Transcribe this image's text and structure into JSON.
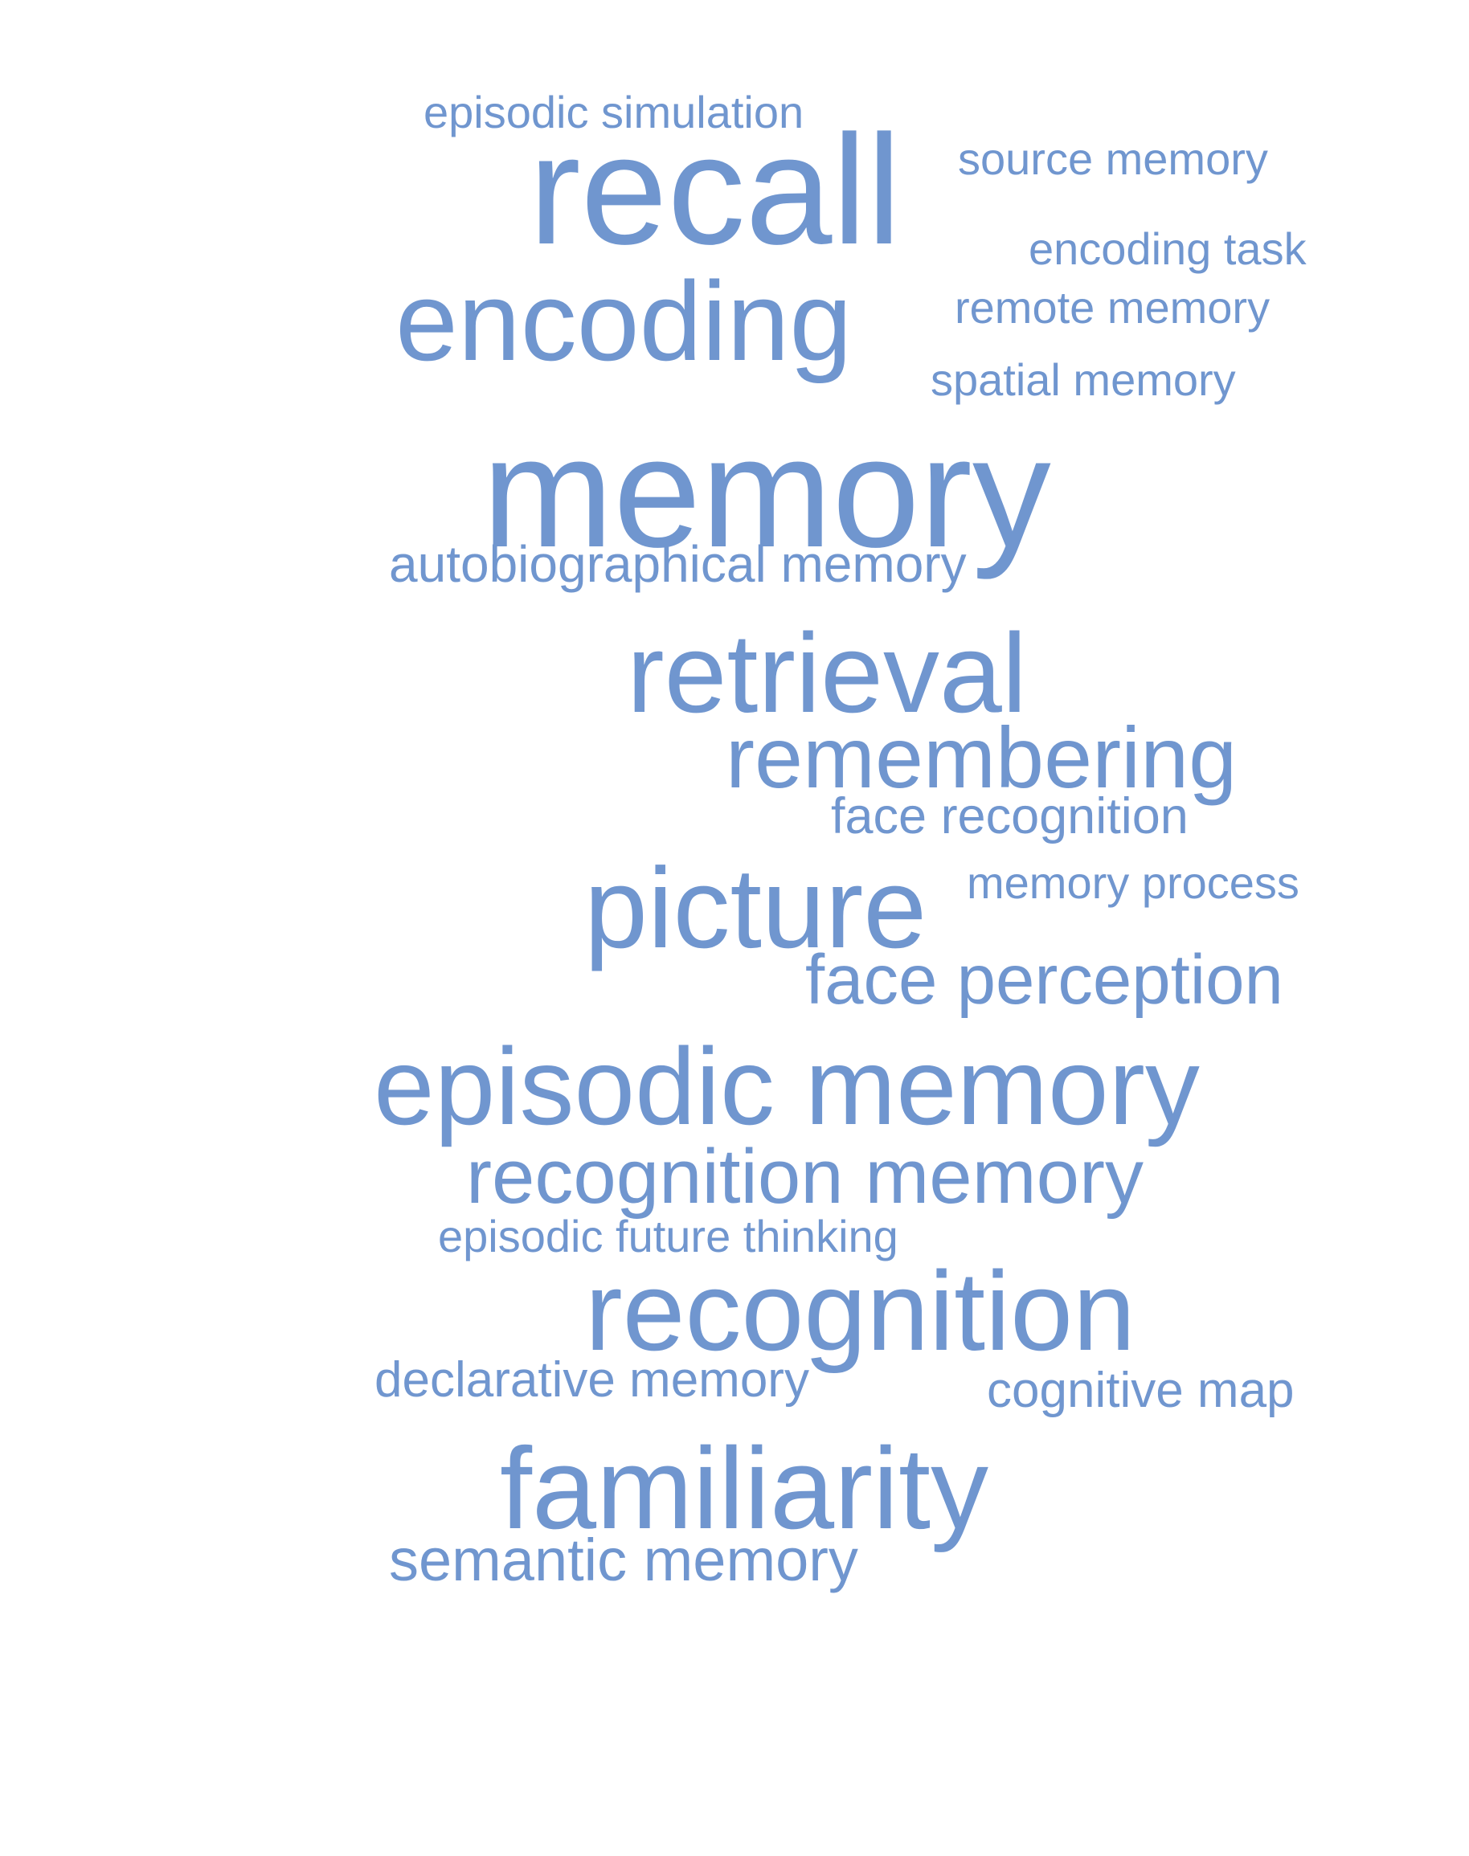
{
  "word_color": "#7096cf",
  "words": [
    "episodic simulation",
    "recall",
    "source memory",
    "encoding task",
    "encoding",
    "remote memory",
    "spatial memory",
    "memory",
    "autobiographical memory",
    "retrieval",
    "remembering",
    "face recognition",
    "picture",
    "memory process",
    "face perception",
    "episodic memory",
    "recognition memory",
    "episodic future thinking",
    "recognition",
    "declarative memory",
    "cognitive map",
    "familiarity",
    "semantic memory"
  ]
}
